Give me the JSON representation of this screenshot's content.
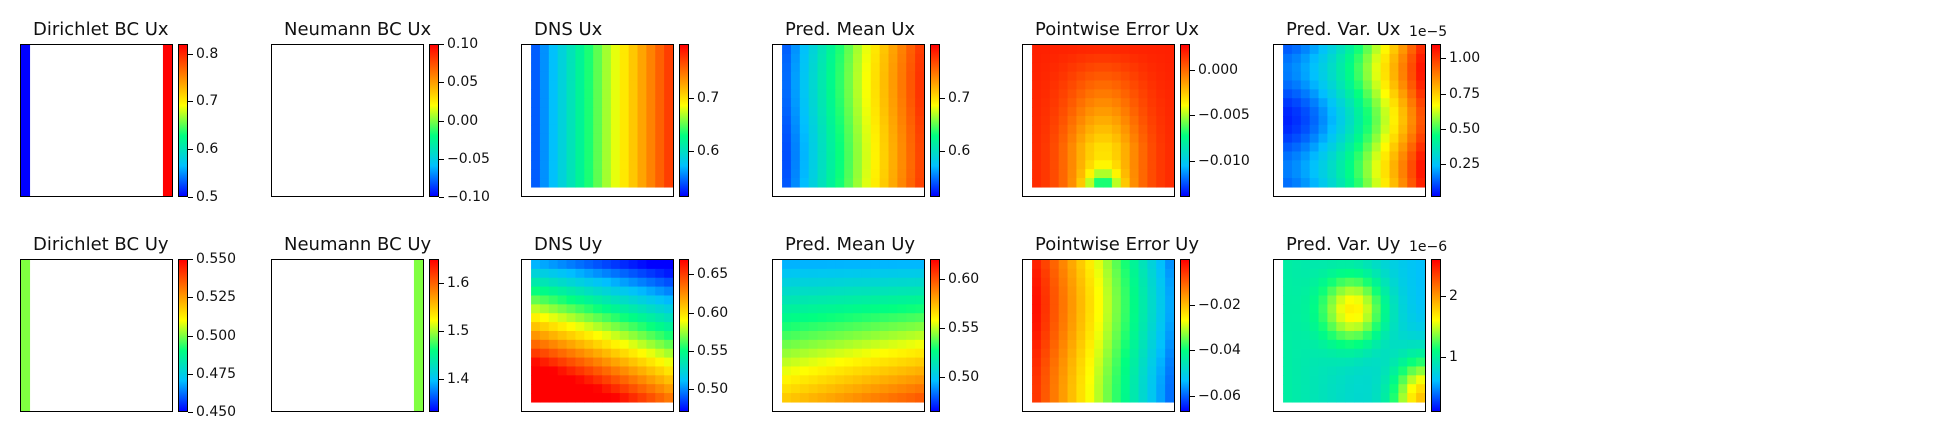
{
  "colormap": [
    "#0000ff",
    "#00c0ff",
    "#00ff80",
    "#ffff00",
    "#ff7f00",
    "#ff0000"
  ],
  "chart_data": [
    {
      "type": "heatmap",
      "title": "Dirichlet BC Ux",
      "pattern": "dirichlet_ux",
      "clim": [
        0.5,
        0.82
      ],
      "ticks": [
        0.5,
        0.6,
        0.7,
        0.8
      ],
      "tick_labels": [
        "0.5",
        "0.6",
        "0.7",
        "0.8"
      ],
      "exponent": ""
    },
    {
      "type": "heatmap",
      "title": "Neumann BC Ux",
      "pattern": "empty",
      "clim": [
        -0.1,
        0.1
      ],
      "ticks": [
        -0.1,
        -0.05,
        0.0,
        0.05,
        0.1
      ],
      "tick_labels": [
        "−0.10",
        "−0.05",
        "0.00",
        "0.05",
        "0.10"
      ],
      "exponent": ""
    },
    {
      "type": "heatmap",
      "title": "DNS Ux",
      "pattern": "dns_ux",
      "clim": [
        0.515,
        0.8
      ],
      "ticks": [
        0.6,
        0.7
      ],
      "tick_labels": [
        "0.6",
        "0.7"
      ],
      "exponent": ""
    },
    {
      "type": "heatmap",
      "title": "Pred. Mean Ux",
      "pattern": "mean_ux",
      "clim": [
        0.515,
        0.8
      ],
      "ticks": [
        0.6,
        0.7
      ],
      "tick_labels": [
        "0.6",
        "0.7"
      ],
      "exponent": ""
    },
    {
      "type": "heatmap",
      "title": "Pointwise Error Ux",
      "pattern": "err_ux",
      "clim": [
        -0.014,
        0.0028
      ],
      "ticks": [
        -0.01,
        -0.005,
        0.0
      ],
      "tick_labels": [
        "−0.010",
        "−0.005",
        "0.000"
      ],
      "exponent": ""
    },
    {
      "type": "heatmap",
      "title": "Pred. Var. Ux",
      "pattern": "var_ux",
      "clim": [
        0.02,
        1.1
      ],
      "ticks": [
        0.25,
        0.5,
        0.75,
        1.0
      ],
      "tick_labels": [
        "0.25",
        "0.50",
        "0.75",
        "1.00"
      ],
      "exponent": "1e−5"
    },
    {
      "type": "heatmap",
      "title": "Dirichlet BC Uy",
      "pattern": "dirichlet_uy",
      "clim": [
        0.45,
        0.55
      ],
      "ticks": [
        0.45,
        0.475,
        0.5,
        0.525,
        0.55
      ],
      "tick_labels": [
        "0.450",
        "0.475",
        "0.500",
        "0.525",
        "0.550"
      ],
      "exponent": ""
    },
    {
      "type": "heatmap",
      "title": "Neumann BC Uy",
      "pattern": "neumann_uy",
      "clim": [
        1.33,
        1.65
      ],
      "ticks": [
        1.4,
        1.5,
        1.6
      ],
      "tick_labels": [
        "1.4",
        "1.5",
        "1.6"
      ],
      "exponent": ""
    },
    {
      "type": "heatmap",
      "title": "DNS Uy",
      "pattern": "dns_uy",
      "clim": [
        0.47,
        0.67
      ],
      "ticks": [
        0.5,
        0.55,
        0.6,
        0.65
      ],
      "tick_labels": [
        "0.50",
        "0.55",
        "0.60",
        "0.65"
      ],
      "exponent": ""
    },
    {
      "type": "heatmap",
      "title": "Pred. Mean Uy",
      "pattern": "mean_uy",
      "clim": [
        0.465,
        0.62
      ],
      "ticks": [
        0.5,
        0.55,
        0.6
      ],
      "tick_labels": [
        "0.50",
        "0.55",
        "0.60"
      ],
      "exponent": ""
    },
    {
      "type": "heatmap",
      "title": "Pointwise Error Uy",
      "pattern": "err_uy",
      "clim": [
        -0.067,
        0.0
      ],
      "ticks": [
        -0.06,
        -0.04,
        -0.02
      ],
      "tick_labels": [
        "−0.06",
        "−0.04",
        "−0.02"
      ],
      "exponent": ""
    },
    {
      "type": "heatmap",
      "title": "Pred. Var. Uy",
      "pattern": "var_uy",
      "clim": [
        0.1,
        2.6
      ],
      "ticks": [
        1,
        2
      ],
      "tick_labels": [
        "1",
        "2"
      ],
      "exponent": "1e−6"
    }
  ]
}
